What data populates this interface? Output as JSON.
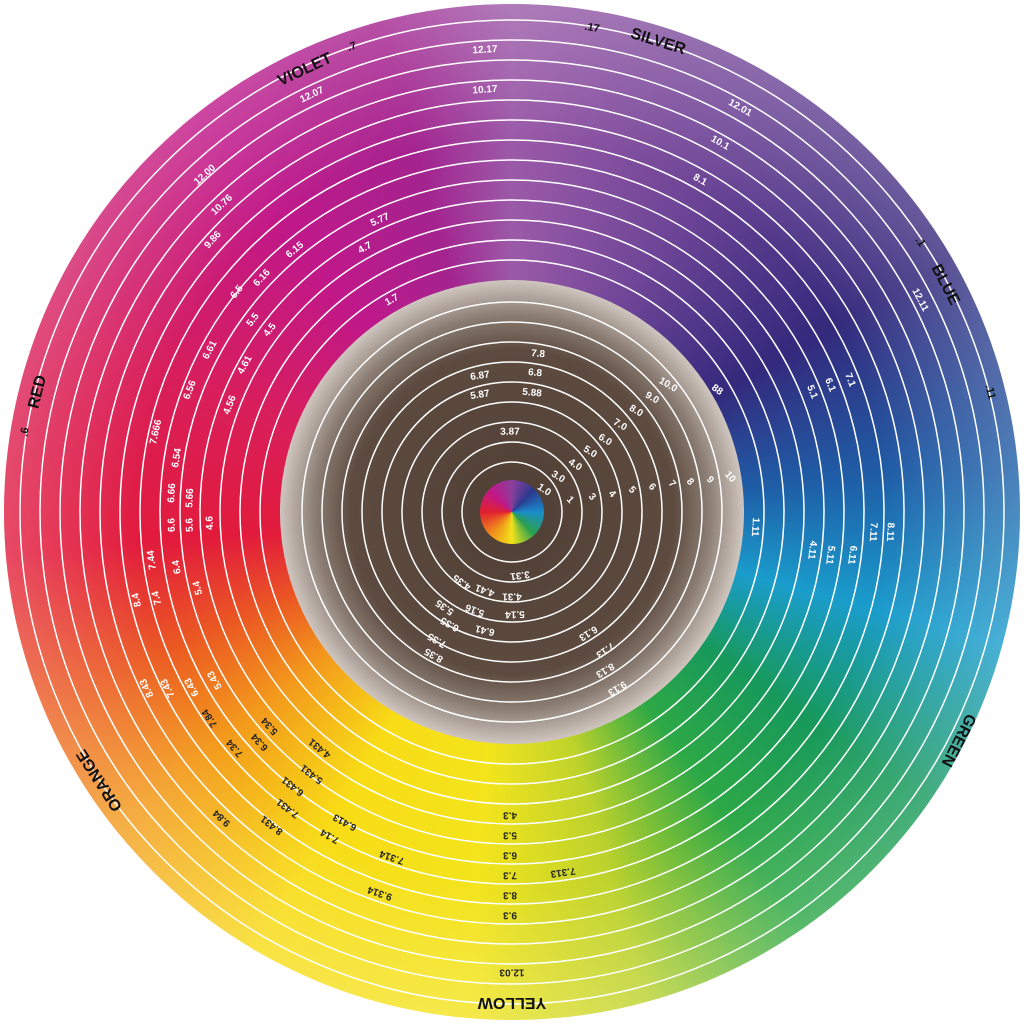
{
  "category_labels": [
    "VIOLET",
    "SILVER",
    "BLUE",
    "RED",
    "ORANGE",
    "GREEN",
    "YELLOW"
  ],
  "series_labels": [
    ".7",
    ".17",
    ".1",
    ".11",
    ".6"
  ],
  "light_labels": [
    "12.17",
    "12.07",
    "10.17",
    "12.01",
    "10.1",
    "8.1",
    "12.00",
    "10.76",
    "9.86",
    "6.15",
    "5.77",
    "4.7",
    "6.16",
    "6.5",
    "5.5",
    "4.5",
    "1.7",
    "6.61",
    "4.61",
    "6.56",
    "4.56",
    "7.666",
    "6.54",
    "6.66",
    "5.66",
    "6.6",
    "5.6",
    "4.6",
    "7.44",
    "6.4",
    "5.4",
    "8.4",
    "7.4",
    "8.43",
    "7.43",
    "6.43",
    "5.43",
    "12.11",
    "7.1",
    "6.1",
    "5.1",
    "88",
    "1.11",
    "8.11",
    "7.11",
    "6.11",
    "5.11",
    "4.11",
    "7.8",
    "6.87",
    "6.8",
    "5.87",
    "5.88",
    "10.0",
    "9.0",
    "8.0",
    "7.0",
    "6.0",
    "5.0",
    "4.0",
    "3.0",
    "1.0",
    "3.87",
    "1",
    "3",
    "4",
    "5",
    "6",
    "7",
    "8",
    "9",
    "10",
    "3.31",
    "4.35",
    "4.41",
    "4.31",
    "5.35",
    "5.16",
    "5.14",
    "6.35",
    "6.41",
    "7.35",
    "8.35",
    "6.13",
    "7.13",
    "8.13",
    "9.13"
  ],
  "dark_labels": [
    "7.84",
    "7.34",
    "6.34",
    "5.34",
    "4.431",
    "5.431",
    "6.431",
    "7.431",
    "8.431",
    "9.84",
    "6.413",
    "7.14",
    "7.314",
    "9.314",
    "4.3",
    "5.3",
    "6.3",
    "7.3",
    "8.3",
    "9.3",
    "7.313",
    "12.03"
  ]
}
